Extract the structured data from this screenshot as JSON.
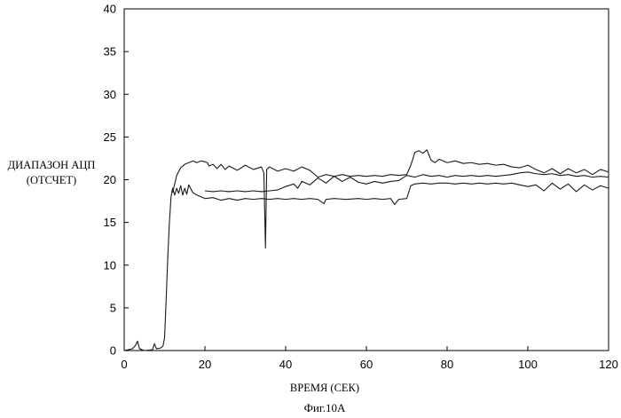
{
  "chart_data": {
    "type": "line",
    "title": "",
    "xlabel": "ВРЕМЯ (СЕК)",
    "ylabel": [
      "ДИАПАЗОН АЦП",
      "(ОТСЧЕТ)"
    ],
    "caption": "Фиг.10А",
    "xlim": [
      0,
      120
    ],
    "ylim": [
      0,
      40
    ],
    "x_ticks": [
      0,
      20,
      40,
      60,
      80,
      100,
      120
    ],
    "y_ticks": [
      0,
      5,
      10,
      15,
      20,
      25,
      30,
      35,
      40
    ],
    "grid": false,
    "legend": "none",
    "line_color": "#1a1a1a",
    "series": [
      {
        "x": [
          0,
          2,
          2.8,
          3.3,
          3.8,
          5,
          7,
          7.5,
          8,
          9,
          9.6,
          10,
          10.4,
          10.8,
          11.2,
          11.6,
          12,
          12.5,
          13,
          13.5,
          14,
          14.5,
          15,
          15.5,
          16,
          17,
          18,
          20,
          22,
          24,
          26,
          28,
          30,
          32,
          34,
          36,
          38,
          40,
          42,
          44,
          46,
          48,
          49.5,
          50,
          52,
          55,
          58,
          60,
          62,
          64,
          66,
          67,
          68,
          70,
          71,
          72,
          74,
          76,
          78,
          80,
          82,
          84,
          86,
          88,
          90,
          92,
          94,
          96,
          98,
          100,
          102,
          104,
          106,
          108,
          110,
          112,
          114,
          116,
          118,
          120
        ],
        "y": [
          0,
          0.2,
          0.6,
          1.1,
          0.2,
          0,
          0.1,
          0.8,
          0.2,
          0.3,
          0.5,
          1.5,
          6,
          11,
          15,
          18,
          19,
          18.2,
          19,
          18.4,
          19.3,
          18.2,
          19,
          18.3,
          19.4,
          18.5,
          18.2,
          17.8,
          17.9,
          17.6,
          17.8,
          17.6,
          17.8,
          17.7,
          17.8,
          17.7,
          17.8,
          17.7,
          17.8,
          17.7,
          17.8,
          17.7,
          17.2,
          17.7,
          17.8,
          17.7,
          17.8,
          17.7,
          17.8,
          17.7,
          17.8,
          17.1,
          17.7,
          17.8,
          19.3,
          19.5,
          19.6,
          19.5,
          19.6,
          19.6,
          19.5,
          19.6,
          19.5,
          19.6,
          19.5,
          19.6,
          19.5,
          19.6,
          19.4,
          19.2,
          19.4,
          18.7,
          19.6,
          18.9,
          19.5,
          18.6,
          19.4,
          18.8,
          19.3,
          19
        ]
      },
      {
        "x": [
          12,
          13,
          14,
          15,
          16,
          17,
          18,
          19,
          20,
          20.6,
          21,
          22,
          23,
          24,
          25,
          26,
          28,
          30,
          32,
          34,
          34.6,
          35,
          35.3,
          36,
          38,
          40,
          42,
          44,
          46,
          48,
          50,
          52,
          54,
          56,
          58,
          60,
          62,
          64,
          66,
          68,
          70,
          71,
          71.5,
          72,
          73,
          74,
          75,
          76,
          77,
          78,
          80,
          82,
          84,
          86,
          88,
          90,
          92,
          94,
          96,
          98,
          100,
          102,
          104,
          106,
          108,
          110,
          112,
          114,
          116,
          118,
          120
        ],
        "y": [
          18.5,
          20.5,
          21.4,
          21.8,
          22,
          22.2,
          22,
          22.2,
          22.1,
          22,
          21.6,
          21.8,
          21.3,
          21.8,
          21.2,
          21.6,
          21.1,
          21.7,
          21.2,
          21.5,
          20.8,
          12,
          21.2,
          21.5,
          21,
          21.3,
          21,
          21.5,
          21.1,
          20.3,
          20.6,
          20.4,
          20.6,
          20.4,
          20.5,
          20.4,
          20.5,
          20.4,
          20.6,
          20.5,
          20.6,
          21.7,
          22.4,
          23.2,
          23.4,
          23.1,
          23.5,
          22.3,
          22,
          22.4,
          22,
          22.2,
          21.9,
          22,
          21.8,
          21.9,
          21.7,
          21.8,
          21.5,
          21.4,
          21.7,
          21.2,
          20.8,
          21.3,
          20.7,
          21.3,
          20.8,
          21.2,
          20.6,
          21.2,
          20.9
        ]
      },
      {
        "x": [
          20,
          22,
          24,
          26,
          28,
          30,
          32,
          34,
          36,
          38,
          40,
          42,
          43,
          44,
          46,
          48,
          50,
          52,
          54,
          56,
          58,
          60,
          62,
          64,
          66,
          68,
          70,
          72,
          74,
          76,
          78,
          80,
          82,
          84,
          86,
          88,
          90,
          92,
          94,
          96,
          98,
          100,
          102,
          104,
          106,
          108,
          110,
          112,
          114,
          116,
          118,
          120
        ],
        "y": [
          18.7,
          18.6,
          18.7,
          18.6,
          18.7,
          18.6,
          18.7,
          18.6,
          18.7,
          18.8,
          19.2,
          19.5,
          19,
          19.8,
          19.4,
          20.2,
          19.6,
          20.4,
          19.8,
          20.3,
          19.7,
          19.5,
          19.8,
          19.6,
          19.8,
          19.9,
          20.5,
          20.3,
          20.6,
          20.4,
          20.5,
          20.3,
          20.5,
          20.4,
          20.5,
          20.4,
          20.5,
          20.4,
          20.5,
          20.6,
          20.8,
          20.9,
          20.7,
          20.6,
          20.7,
          20.5,
          20.6,
          20.4,
          20.5,
          20.3,
          20.4,
          20.3
        ]
      }
    ]
  }
}
